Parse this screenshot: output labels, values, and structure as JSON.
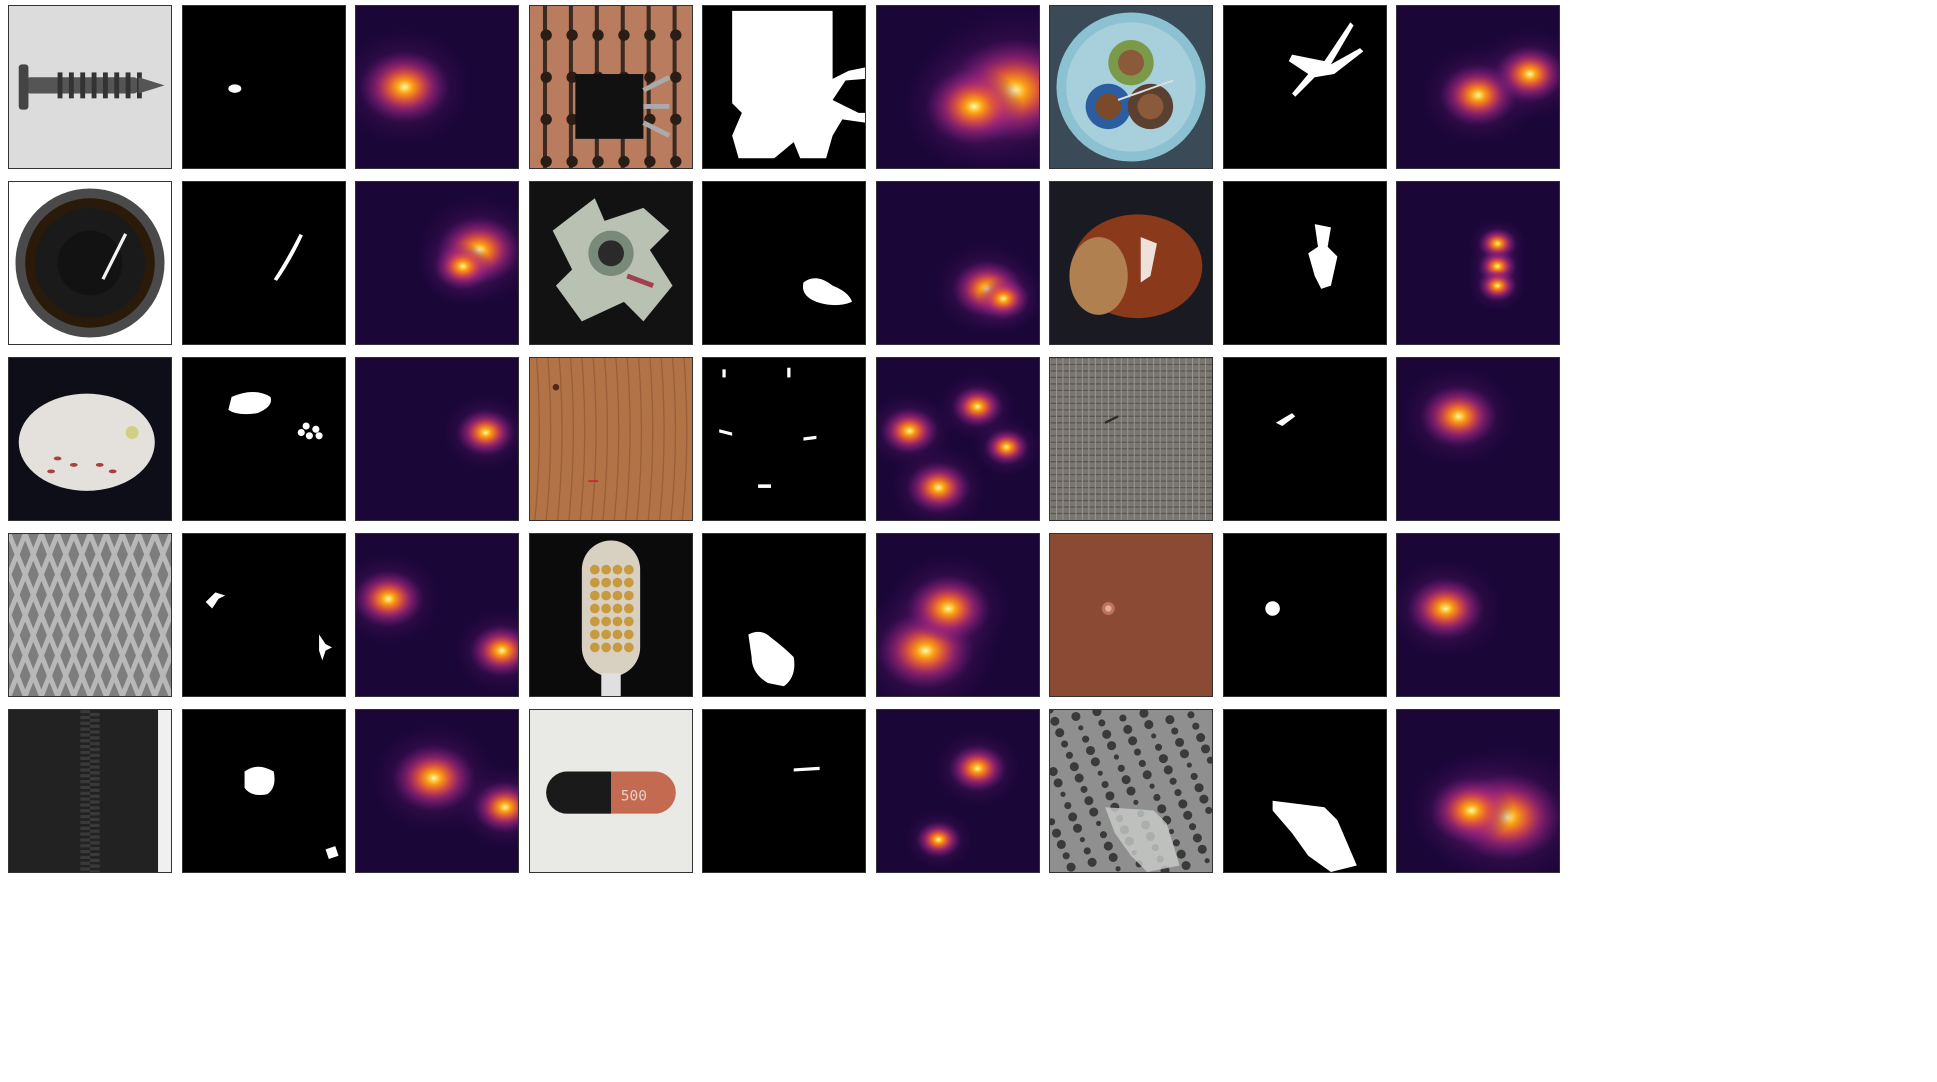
{
  "figure": {
    "background_color": "#ffffff",
    "tile_border_color": "#333333",
    "column_types": [
      "image",
      "ground-truth-mask",
      "anomaly-heatmap"
    ],
    "heatmap_colormap": [
      "#06010f",
      "#2c0b5a",
      "#6a1a8f",
      "#b02a7a",
      "#e4573c",
      "#fb9e12",
      "#fcfc9a"
    ],
    "rows": [
      {
        "samples": [
          {
            "object": "screw",
            "image_bg": "#dcdcdc",
            "mask_icon": "small-blob",
            "heat_icon": "center-left-spot"
          },
          {
            "object": "transistor",
            "image_bg": "#b97c5f",
            "mask_icon": "large-region",
            "heat_icon": "right-broad-glow"
          },
          {
            "object": "cable",
            "image_bg": "#3a4a56",
            "mask_icon": "wires-shape",
            "heat_icon": "center-right-spots"
          }
        ]
      },
      {
        "samples": [
          {
            "object": "bottle",
            "image_bg": "#ffffff",
            "mask_icon": "thin-line",
            "heat_icon": "right-diagonal-spot"
          },
          {
            "object": "metal-nut",
            "image_bg": "#121212",
            "mask_icon": "blob-bottom-right",
            "heat_icon": "bottom-right-spot"
          },
          {
            "object": "hazelnut",
            "image_bg": "#1a1a22",
            "mask_icon": "vertical-spots",
            "heat_icon": "vertical-triple-spot"
          }
        ]
      },
      {
        "samples": [
          {
            "object": "pill",
            "image_bg": "#0e0e18",
            "mask_icon": "blob-and-dots",
            "heat_icon": "right-spot"
          },
          {
            "object": "wood",
            "image_bg": "#b27446",
            "mask_icon": "scattered-scratches",
            "heat_icon": "scattered-spots"
          },
          {
            "object": "carpet",
            "image_bg": "#7a7672",
            "mask_icon": "small-stroke",
            "heat_icon": "upper-center-spot"
          }
        ]
      },
      {
        "samples": [
          {
            "object": "grid",
            "image_bg": "#7d7d7d",
            "mask_icon": "two-marks",
            "heat_icon": "two-spots"
          },
          {
            "object": "toothbrush",
            "image_bg": "#0b0b0b",
            "mask_icon": "bristle-region",
            "heat_icon": "lower-left-glow"
          },
          {
            "object": "leather",
            "image_bg": "#8a4a33",
            "mask_icon": "dot",
            "heat_icon": "left-spot"
          }
        ]
      },
      {
        "samples": [
          {
            "object": "zipper",
            "image_bg": "#222222",
            "mask_icon": "blob-and-mark",
            "heat_icon": "two-spots-diagonal"
          },
          {
            "object": "capsule",
            "image_bg": "#e9e9e6",
            "mask_icon": "short-line",
            "heat_icon": "upper-right-spot"
          },
          {
            "object": "tile",
            "image_bg": "#8f8f8f",
            "mask_icon": "large-polygon",
            "heat_icon": "lower-right-glow"
          }
        ]
      }
    ]
  }
}
